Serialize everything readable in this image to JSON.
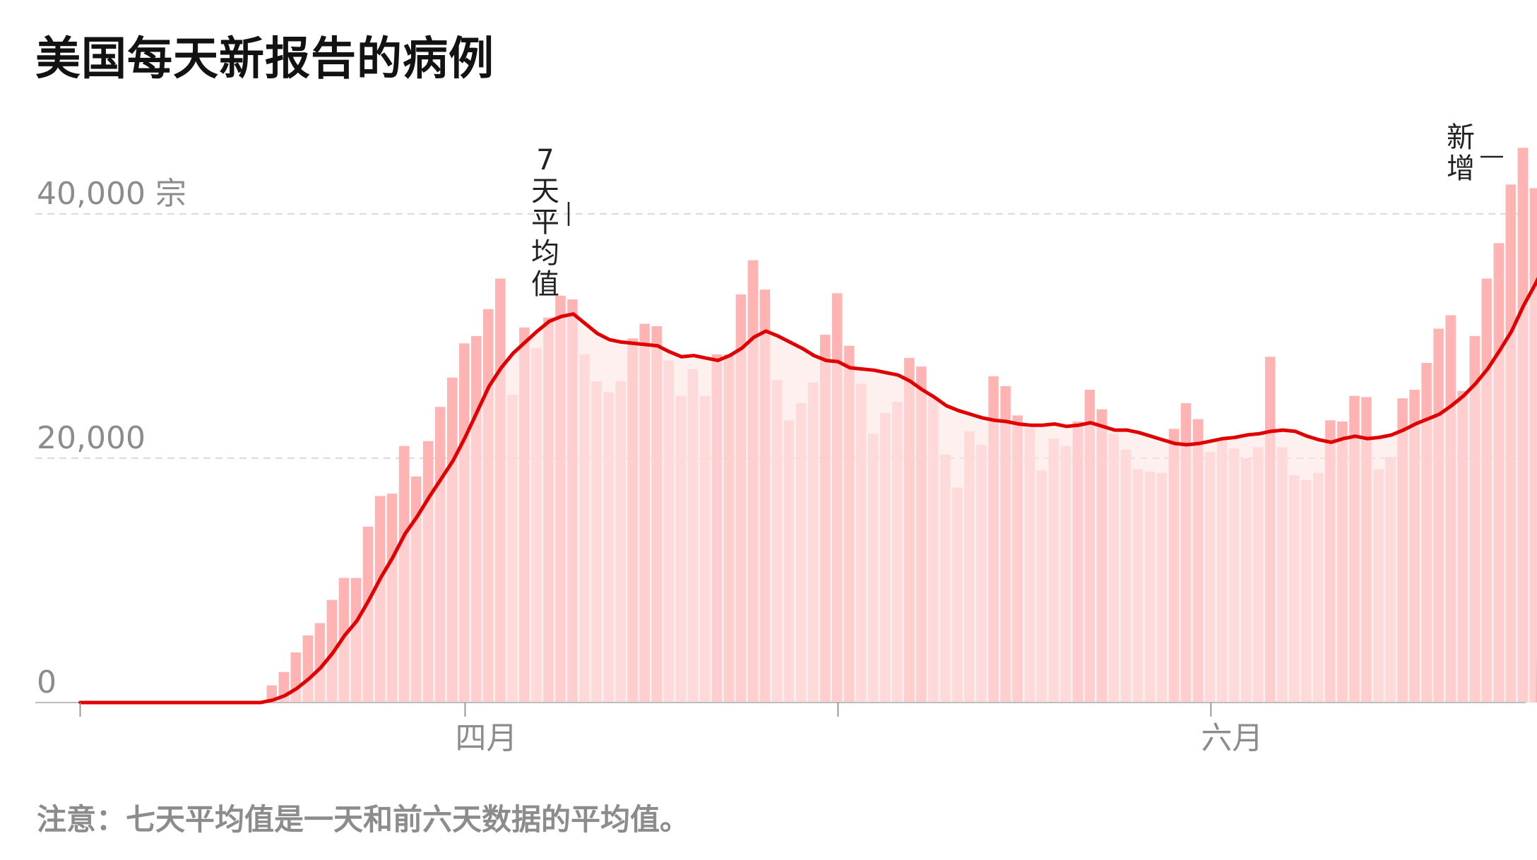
{
  "title": "美国每天新报告的病例",
  "note": "注意：七天平均值是一天和前六天数据的平均值。",
  "chart_data": {
    "type": "bar",
    "title": "美国每天新报告的病例",
    "y_unit": "宗",
    "ylim": [
      0,
      46000
    ],
    "y_ticks": [
      {
        "value": 0,
        "label": "0"
      },
      {
        "value": 20000,
        "label": "20,000"
      },
      {
        "value": 40000,
        "label": "40,000 宗"
      }
    ],
    "x_ticks": [
      {
        "index": 32,
        "label": "四月"
      },
      {
        "index": 63,
        "label": ""
      },
      {
        "index": 94,
        "label": "六月"
      }
    ],
    "grid": "horizontal dashed",
    "colors": {
      "bars": "#ffb3b3",
      "bars_light": "#ffcece",
      "line": "#e00000",
      "fill": "#ffe3e3"
    },
    "series": [
      {
        "name": "新增",
        "kind": "bars",
        "values": [
          0,
          0,
          0,
          0,
          0,
          0,
          0,
          0,
          0,
          0,
          0,
          0,
          0,
          0,
          0,
          0,
          1400,
          2500,
          4100,
          5500,
          6500,
          8400,
          10200,
          10200,
          14400,
          16900,
          17100,
          21000,
          18500,
          21400,
          24200,
          26600,
          29400,
          30000,
          32200,
          34700,
          25200,
          30700,
          29000,
          31500,
          33300,
          33000,
          28500,
          26300,
          25400,
          26300,
          29800,
          31000,
          30800,
          28000,
          25100,
          27300,
          25100,
          28500,
          28500,
          33400,
          36200,
          33800,
          26400,
          23100,
          24500,
          26200,
          30100,
          33500,
          29200,
          26100,
          22000,
          23700,
          24600,
          28200,
          27500,
          25000,
          20300,
          17600,
          22200,
          21100,
          26700,
          25900,
          23500,
          22500,
          19000,
          21600,
          21000,
          23000,
          25600,
          24000,
          22000,
          20700,
          19100,
          18900,
          18800,
          22400,
          24500,
          23200,
          20500,
          21600,
          20800,
          20000,
          20900,
          28300,
          20900,
          18600,
          18200,
          18800,
          23100,
          23000,
          25100,
          25000,
          19100,
          20100,
          24900,
          25600,
          27800,
          30600,
          31700,
          25500,
          30000,
          34700,
          37600,
          42400,
          45400,
          42100
        ]
      },
      {
        "name": "7天平均值",
        "kind": "line",
        "values": [
          0,
          0,
          0,
          0,
          0,
          0,
          0,
          0,
          0,
          0,
          0,
          0,
          0,
          0,
          0,
          0,
          200,
          560,
          1150,
          1930,
          2860,
          4060,
          5510,
          6680,
          8380,
          10240,
          11900,
          13800,
          15200,
          16800,
          18300,
          19800,
          21700,
          23800,
          25900,
          27400,
          28600,
          29500,
          30400,
          31200,
          31600,
          31800,
          31000,
          30200,
          29700,
          29500,
          29400,
          29300,
          29200,
          28700,
          28300,
          28400,
          28200,
          28000,
          28400,
          29000,
          29900,
          30400,
          30000,
          29500,
          29000,
          28400,
          28000,
          27900,
          27400,
          27300,
          27200,
          27000,
          26800,
          26300,
          25600,
          25000,
          24300,
          23900,
          23600,
          23300,
          23100,
          23000,
          22800,
          22700,
          22700,
          22800,
          22600,
          22700,
          22900,
          22600,
          22300,
          22300,
          22100,
          21800,
          21500,
          21200,
          21100,
          21200,
          21400,
          21600,
          21700,
          21900,
          22000,
          22200,
          22300,
          22200,
          21800,
          21500,
          21300,
          21600,
          21800,
          21600,
          21700,
          21900,
          22300,
          22800,
          23200,
          23600,
          24300,
          25100,
          26100,
          27300,
          28800,
          30400,
          32500,
          34300,
          36300
        ]
      }
    ],
    "annotations": [
      {
        "text": "7天平均值",
        "target": "7天平均值"
      },
      {
        "text": "新增",
        "target": "新增"
      }
    ]
  }
}
